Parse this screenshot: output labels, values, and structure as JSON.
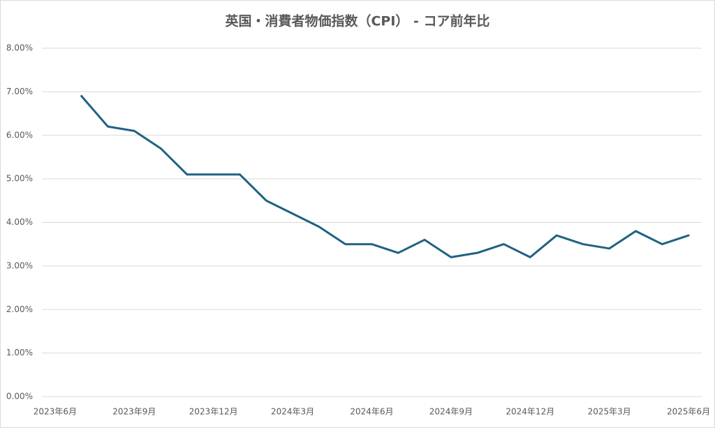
{
  "chart_data": {
    "type": "line",
    "title": "英国・消費者物価指数（CPI） - コア前年比",
    "categories": [
      "2023年6月",
      null,
      null,
      "2023年9月",
      null,
      null,
      "2023年12月",
      null,
      null,
      "2024年3月",
      null,
      null,
      "2024年6月",
      null,
      null,
      "2024年9月",
      null,
      null,
      "2024年12月",
      null,
      null,
      "2025年3月",
      null,
      null,
      "2025年6月"
    ],
    "series": [
      {
        "color": "#1f6282",
        "values": [
          null,
          6.9,
          6.2,
          6.1,
          5.7,
          5.1,
          5.1,
          5.1,
          4.5,
          4.2,
          3.9,
          3.5,
          3.5,
          3.3,
          3.6,
          3.2,
          3.3,
          3.5,
          3.2,
          3.7,
          3.5,
          3.4,
          3.8,
          3.5,
          3.7
        ]
      }
    ],
    "ylim": [
      0,
      8
    ],
    "yticks": [
      {
        "value": 0,
        "label": "0.00%"
      },
      {
        "value": 1,
        "label": "1.00%"
      },
      {
        "value": 2,
        "label": "2.00%"
      },
      {
        "value": 3,
        "label": "3.00%"
      },
      {
        "value": 4,
        "label": "4.00%"
      },
      {
        "value": 5,
        "label": "5.00%"
      },
      {
        "value": 6,
        "label": "6.00%"
      },
      {
        "value": 7,
        "label": "7.00%"
      },
      {
        "value": 8,
        "label": "8.00%"
      }
    ],
    "grid": true
  }
}
